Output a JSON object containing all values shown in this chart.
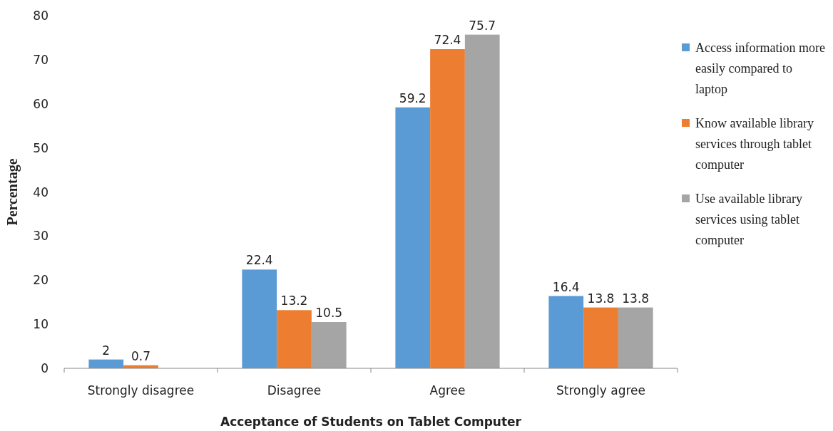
{
  "chart_data": {
    "type": "bar",
    "xlabel": "Acceptance of Students on Tablet Computer",
    "ylabel": "Percentage",
    "categories": [
      "Strongly disagree",
      "Disagree",
      "Agree",
      "Strongly agree"
    ],
    "series": [
      {
        "name": "Access information more easily compared to laptop",
        "color": "#5b9bd5",
        "values": [
          2,
          22.4,
          59.2,
          16.4
        ]
      },
      {
        "name": "Know available library services through tablet computer",
        "color": "#ed7d31",
        "values": [
          0.7,
          13.2,
          72.4,
          13.8
        ]
      },
      {
        "name": "Use available library services using tablet computer",
        "color": "#a5a5a5",
        "values": [
          null,
          10.5,
          75.7,
          13.8
        ]
      }
    ],
    "ylim": [
      0,
      80
    ],
    "yticks": [
      0,
      10,
      20,
      30,
      40,
      50,
      60,
      70,
      80
    ],
    "data_labels": true,
    "legend": "right",
    "grid": false
  }
}
